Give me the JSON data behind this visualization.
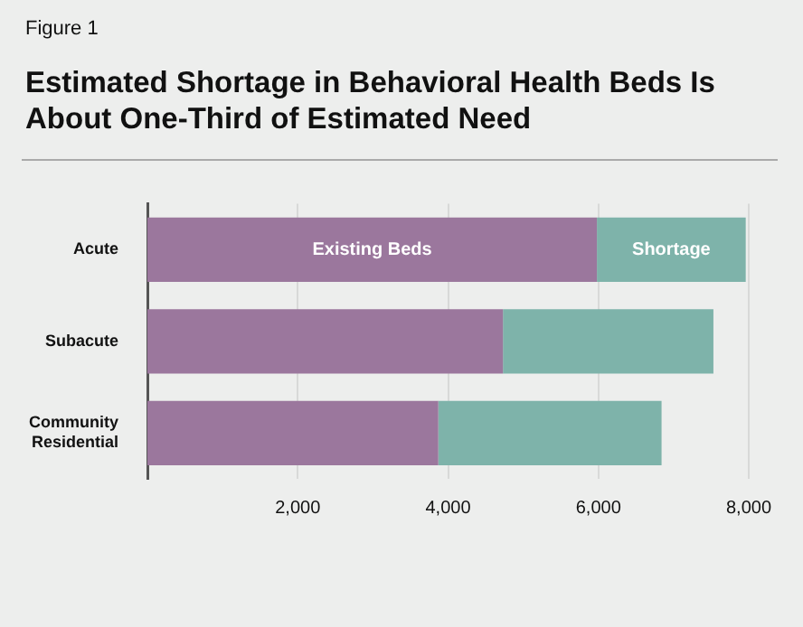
{
  "chart_data": {
    "type": "bar",
    "orientation": "horizontal",
    "stacked": true,
    "title": "Estimated Shortage in Behavioral Health Beds Is About One-Third of Estimated Need",
    "annotations": [
      "Figure 1"
    ],
    "categories": [
      "Acute",
      "Subacute",
      "Community Residential"
    ],
    "series": [
      {
        "name": "Existing Beds",
        "color": "#9b779d",
        "values": [
          5980,
          4730,
          3870
        ]
      },
      {
        "name": "Shortage",
        "color": "#7eb3aa",
        "values": [
          1980,
          2800,
          2970
        ]
      }
    ],
    "xlim": [
      0,
      8000
    ],
    "xticks": [
      {
        "value": 0,
        "label": null
      },
      {
        "value": 2000,
        "label": "2,000"
      },
      {
        "value": 4000,
        "label": "4,000"
      },
      {
        "value": 6000,
        "label": "6,000"
      },
      {
        "value": 8000,
        "label": "8,000"
      }
    ],
    "grid": "x",
    "legend": false
  }
}
